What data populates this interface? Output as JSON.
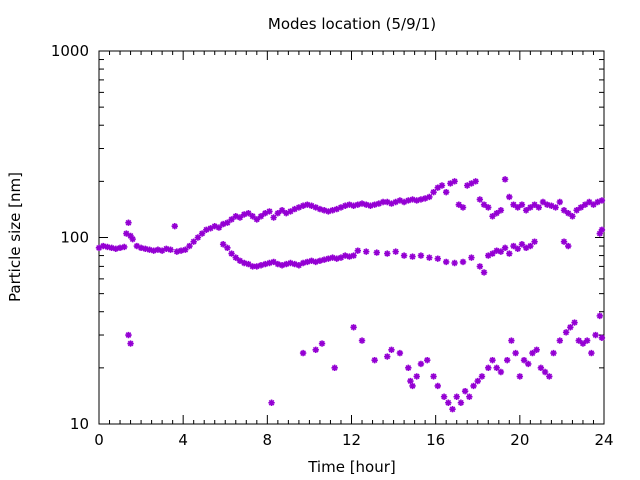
{
  "chart_data": {
    "type": "scatter",
    "title": "Modes location (5/9/1)",
    "xlabel": "Time [hour]",
    "ylabel": "Particle size [nm]",
    "xlim": [
      0,
      24
    ],
    "ylim": [
      10,
      1000
    ],
    "yscale": "log",
    "xticks": [
      0,
      4,
      8,
      12,
      16,
      20,
      24
    ],
    "xtick_labels": [
      "0",
      "4",
      "8",
      "12",
      "16",
      "20",
      "24"
    ],
    "yticks": [
      10,
      100,
      1000
    ],
    "ytick_labels": [
      "10",
      "100",
      "1000"
    ],
    "grid": false,
    "legend": "none",
    "marker_color": "#9400d3",
    "series": [
      {
        "points": [
          [
            0.0,
            88
          ],
          [
            0.2,
            90
          ],
          [
            0.4,
            89
          ],
          [
            0.6,
            88
          ],
          [
            0.8,
            87
          ],
          [
            1.0,
            88
          ],
          [
            1.2,
            89
          ],
          [
            1.3,
            105
          ],
          [
            1.4,
            120
          ],
          [
            1.5,
            102
          ],
          [
            1.6,
            98
          ],
          [
            1.8,
            90
          ],
          [
            2.0,
            88
          ],
          [
            2.2,
            87
          ],
          [
            2.4,
            86
          ],
          [
            2.6,
            85
          ],
          [
            2.8,
            86
          ],
          [
            3.0,
            85
          ],
          [
            3.2,
            87
          ],
          [
            3.4,
            86
          ],
          [
            3.6,
            115
          ],
          [
            3.7,
            84
          ],
          [
            3.9,
            85
          ],
          [
            4.1,
            86
          ],
          [
            4.3,
            90
          ],
          [
            4.5,
            95
          ],
          [
            4.7,
            100
          ],
          [
            4.9,
            105
          ],
          [
            5.1,
            110
          ],
          [
            5.3,
            112
          ],
          [
            5.5,
            115
          ],
          [
            5.7,
            113
          ],
          [
            5.9,
            118
          ],
          [
            6.1,
            120
          ],
          [
            6.3,
            125
          ],
          [
            6.5,
            130
          ],
          [
            6.7,
            128
          ],
          [
            6.9,
            133
          ],
          [
            7.1,
            135
          ],
          [
            7.3,
            130
          ],
          [
            7.5,
            125
          ],
          [
            7.7,
            130
          ],
          [
            7.9,
            135
          ],
          [
            8.1,
            138
          ],
          [
            8.3,
            128
          ],
          [
            8.5,
            135
          ],
          [
            8.7,
            140
          ],
          [
            8.9,
            135
          ],
          [
            9.1,
            138
          ],
          [
            9.3,
            142
          ],
          [
            9.5,
            145
          ],
          [
            9.7,
            148
          ],
          [
            9.9,
            150
          ],
          [
            10.1,
            148
          ],
          [
            10.3,
            145
          ],
          [
            10.5,
            142
          ],
          [
            10.7,
            140
          ],
          [
            10.9,
            138
          ],
          [
            11.1,
            140
          ],
          [
            11.3,
            142
          ],
          [
            11.5,
            145
          ],
          [
            11.7,
            148
          ],
          [
            11.9,
            150
          ],
          [
            12.1,
            148
          ],
          [
            12.3,
            150
          ],
          [
            12.5,
            152
          ],
          [
            12.7,
            150
          ],
          [
            12.9,
            148
          ],
          [
            13.1,
            150
          ],
          [
            13.3,
            152
          ],
          [
            13.5,
            155
          ],
          [
            13.7,
            155
          ],
          [
            13.9,
            152
          ],
          [
            14.1,
            155
          ],
          [
            14.3,
            158
          ],
          [
            14.5,
            155
          ],
          [
            14.7,
            158
          ],
          [
            14.9,
            160
          ],
          [
            15.1,
            158
          ],
          [
            15.3,
            160
          ],
          [
            15.5,
            162
          ],
          [
            15.7,
            165
          ],
          [
            15.9,
            175
          ],
          [
            16.1,
            185
          ],
          [
            16.3,
            190
          ],
          [
            16.5,
            175
          ],
          [
            16.7,
            195
          ],
          [
            16.9,
            200
          ],
          [
            17.1,
            150
          ],
          [
            17.3,
            145
          ],
          [
            17.5,
            190
          ],
          [
            17.7,
            195
          ],
          [
            17.9,
            200
          ],
          [
            18.1,
            160
          ],
          [
            18.3,
            150
          ],
          [
            18.5,
            145
          ],
          [
            18.7,
            130
          ],
          [
            18.9,
            135
          ],
          [
            19.1,
            140
          ],
          [
            19.3,
            205
          ],
          [
            19.5,
            165
          ],
          [
            19.7,
            150
          ],
          [
            19.9,
            145
          ],
          [
            20.1,
            150
          ],
          [
            20.3,
            140
          ],
          [
            20.5,
            145
          ],
          [
            20.7,
            150
          ],
          [
            20.9,
            145
          ],
          [
            21.1,
            155
          ],
          [
            21.3,
            150
          ],
          [
            21.5,
            148
          ],
          [
            21.7,
            145
          ],
          [
            21.9,
            155
          ],
          [
            22.1,
            140
          ],
          [
            22.3,
            135
          ],
          [
            22.5,
            130
          ],
          [
            22.7,
            140
          ],
          [
            22.9,
            145
          ],
          [
            23.1,
            150
          ],
          [
            23.3,
            155
          ],
          [
            23.5,
            150
          ],
          [
            23.7,
            155
          ],
          [
            23.9,
            158
          ],
          [
            5.9,
            92
          ],
          [
            6.1,
            88
          ],
          [
            6.3,
            82
          ],
          [
            6.5,
            78
          ],
          [
            6.7,
            75
          ],
          [
            6.9,
            73
          ],
          [
            7.1,
            72
          ],
          [
            7.3,
            70
          ],
          [
            7.5,
            70
          ],
          [
            7.7,
            71
          ],
          [
            7.9,
            72
          ],
          [
            8.1,
            73
          ],
          [
            8.3,
            74
          ],
          [
            8.5,
            72
          ],
          [
            8.7,
            71
          ],
          [
            8.9,
            72
          ],
          [
            9.1,
            73
          ],
          [
            9.3,
            72
          ],
          [
            9.5,
            71
          ],
          [
            9.7,
            73
          ],
          [
            9.9,
            74
          ],
          [
            10.1,
            75
          ],
          [
            10.3,
            74
          ],
          [
            10.5,
            75
          ],
          [
            10.7,
            76
          ],
          [
            10.9,
            77
          ],
          [
            11.1,
            78
          ],
          [
            11.3,
            77
          ],
          [
            11.5,
            78
          ],
          [
            11.7,
            80
          ],
          [
            11.9,
            79
          ],
          [
            12.1,
            80
          ],
          [
            12.3,
            85
          ],
          [
            12.7,
            84
          ],
          [
            13.2,
            83
          ],
          [
            13.7,
            82
          ],
          [
            14.1,
            84
          ],
          [
            14.5,
            80
          ],
          [
            14.9,
            79
          ],
          [
            15.3,
            80
          ],
          [
            15.7,
            78
          ],
          [
            16.1,
            77
          ],
          [
            16.5,
            74
          ],
          [
            16.9,
            73
          ],
          [
            17.3,
            74
          ],
          [
            17.7,
            78
          ],
          [
            18.1,
            70
          ],
          [
            18.3,
            65
          ],
          [
            18.5,
            80
          ],
          [
            18.7,
            82
          ],
          [
            18.9,
            85
          ],
          [
            19.1,
            84
          ],
          [
            19.3,
            88
          ],
          [
            19.5,
            82
          ],
          [
            19.7,
            90
          ],
          [
            19.9,
            87
          ],
          [
            20.1,
            92
          ],
          [
            20.3,
            88
          ],
          [
            20.5,
            90
          ],
          [
            20.7,
            95
          ],
          [
            22.1,
            95
          ],
          [
            22.3,
            90
          ],
          [
            23.8,
            105
          ],
          [
            23.9,
            110
          ],
          [
            1.4,
            30
          ],
          [
            1.5,
            27
          ],
          [
            8.2,
            13
          ],
          [
            9.7,
            24
          ],
          [
            10.3,
            25
          ],
          [
            10.6,
            27
          ],
          [
            11.2,
            20
          ],
          [
            12.1,
            33
          ],
          [
            12.5,
            28
          ],
          [
            13.1,
            22
          ],
          [
            13.7,
            23
          ],
          [
            13.9,
            25
          ],
          [
            14.3,
            24
          ],
          [
            14.7,
            20
          ],
          [
            14.8,
            17
          ],
          [
            14.9,
            16
          ],
          [
            15.1,
            18
          ],
          [
            15.3,
            21
          ],
          [
            15.6,
            22
          ],
          [
            15.9,
            18
          ],
          [
            16.1,
            16
          ],
          [
            16.4,
            14
          ],
          [
            16.6,
            13
          ],
          [
            16.8,
            12
          ],
          [
            17.0,
            14
          ],
          [
            17.2,
            13
          ],
          [
            17.4,
            15
          ],
          [
            17.6,
            14
          ],
          [
            17.8,
            16
          ],
          [
            18.0,
            17
          ],
          [
            18.2,
            18
          ],
          [
            18.5,
            20
          ],
          [
            18.7,
            22
          ],
          [
            18.9,
            20
          ],
          [
            19.1,
            19
          ],
          [
            19.4,
            22
          ],
          [
            19.6,
            28
          ],
          [
            19.8,
            24
          ],
          [
            20.0,
            18
          ],
          [
            20.2,
            22
          ],
          [
            20.4,
            21
          ],
          [
            20.6,
            24
          ],
          [
            20.8,
            25
          ],
          [
            21.0,
            20
          ],
          [
            21.2,
            19
          ],
          [
            21.4,
            18
          ],
          [
            21.6,
            24
          ],
          [
            21.9,
            28
          ],
          [
            22.2,
            31
          ],
          [
            22.4,
            33
          ],
          [
            22.6,
            35
          ],
          [
            22.8,
            28
          ],
          [
            23.0,
            27
          ],
          [
            23.2,
            28
          ],
          [
            23.4,
            24
          ],
          [
            23.6,
            30
          ],
          [
            23.8,
            38
          ],
          [
            23.9,
            29
          ]
        ]
      }
    ]
  }
}
